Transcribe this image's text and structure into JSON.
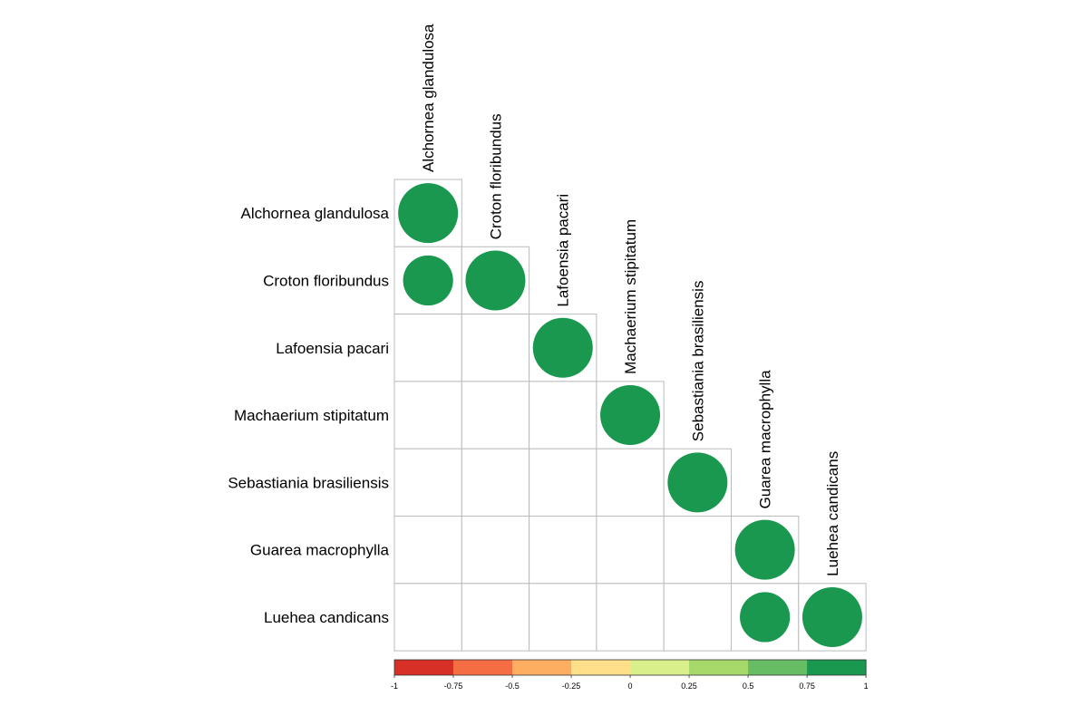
{
  "chart_data": {
    "type": "heatmap",
    "subtype": "correlation-circle-lower-triangle",
    "variables": [
      "Alchornea glandulosa",
      "Croton floribundus",
      "Lafoensia pacari",
      "Machaerium stipitatum",
      "Sebastiania brasiliensis",
      "Guarea macrophylla",
      "Luehea candicans"
    ],
    "matrix": [
      [
        1,
        null,
        null,
        null,
        null,
        null,
        null
      ],
      [
        0.7,
        1,
        null,
        null,
        null,
        null,
        null
      ],
      [
        0,
        0,
        1,
        null,
        null,
        null,
        null
      ],
      [
        0,
        0,
        0,
        1,
        null,
        null,
        null
      ],
      [
        0,
        0,
        0,
        0,
        1,
        null,
        null
      ],
      [
        0,
        0,
        0,
        0,
        0,
        1,
        null
      ],
      [
        0,
        0,
        0,
        0,
        0,
        0.7,
        1
      ]
    ],
    "colorbar": {
      "ticks": [
        "-1",
        "-0.75",
        "-0.5",
        "-0.25",
        "0",
        "0.25",
        "0.5",
        "0.75",
        "1"
      ],
      "colors": [
        "#d73027",
        "#f46d43",
        "#fdae61",
        "#fee08b",
        "#d9ef8b",
        "#a6d96a",
        "#66bd63",
        "#1a9850"
      ],
      "range": [
        -1,
        1
      ]
    },
    "grid": true,
    "circle_color": "#1a9850",
    "grid_color": "#bbbbbb"
  }
}
